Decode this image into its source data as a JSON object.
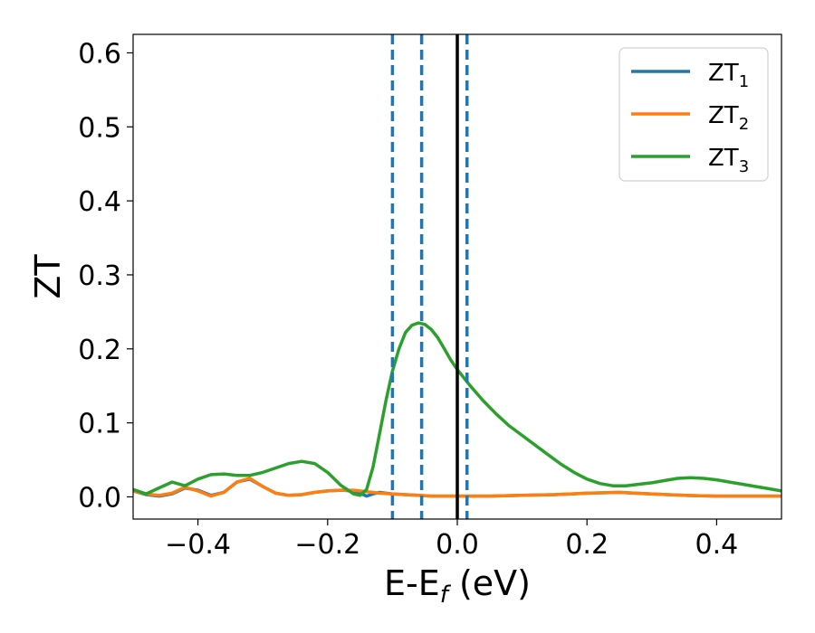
{
  "chart_data": {
    "type": "line",
    "xlabel_main": "E-E",
    "xlabel_sub": "f",
    "xlabel_unit": " (eV)",
    "ylabel": "ZT",
    "xlim": [
      -0.5,
      0.5
    ],
    "ylim": [
      -0.03,
      0.625
    ],
    "x_ticks": [
      -0.4,
      -0.2,
      0.0,
      0.2,
      0.4
    ],
    "x_tick_labels": [
      "−0.4",
      "−0.2",
      "0.0",
      "0.2",
      "0.4"
    ],
    "y_ticks": [
      0.0,
      0.1,
      0.2,
      0.3,
      0.4,
      0.5,
      0.6
    ],
    "y_tick_labels": [
      "0.0",
      "0.1",
      "0.2",
      "0.3",
      "0.4",
      "0.5",
      "0.6"
    ],
    "grid": false,
    "legend_position": "top-right",
    "vlines": [
      {
        "x": -0.1,
        "style": "dashed",
        "color": "#1f77b4"
      },
      {
        "x": -0.055,
        "style": "dashed",
        "color": "#1f77b4"
      },
      {
        "x": 0.015,
        "style": "dashed",
        "color": "#1f77b4"
      },
      {
        "x": 0.0,
        "style": "solid",
        "color": "#000000"
      }
    ],
    "series": [
      {
        "name": "ZT",
        "sub": "1",
        "color": "#1f77b4",
        "x": [
          -0.5,
          -0.48,
          -0.46,
          -0.44,
          -0.42,
          -0.4,
          -0.38,
          -0.36,
          -0.34,
          -0.32,
          -0.3,
          -0.28,
          -0.26,
          -0.24,
          -0.22,
          -0.2,
          -0.18,
          -0.16,
          -0.15,
          -0.14,
          -0.13,
          -0.12,
          -0.1,
          -0.08,
          -0.06,
          -0.04,
          -0.02,
          0.0,
          0.05,
          0.1,
          0.15,
          0.2,
          0.25,
          0.3,
          0.35,
          0.4,
          0.45,
          0.5
        ],
        "y": [
          0.008,
          0.003,
          0.001,
          0.004,
          0.012,
          0.009,
          0.002,
          0.006,
          0.02,
          0.024,
          0.014,
          0.005,
          0.002,
          0.003,
          0.006,
          0.008,
          0.009,
          0.008,
          0.005,
          0.001,
          0.004,
          0.006,
          0.004,
          0.003,
          0.002,
          0.001,
          0.001,
          0.001,
          0.001,
          0.002,
          0.003,
          0.005,
          0.006,
          0.004,
          0.002,
          0.001,
          0.001,
          0.001
        ]
      },
      {
        "name": "ZT",
        "sub": "2",
        "color": "#ff7f0e",
        "x": [
          -0.5,
          -0.48,
          -0.46,
          -0.44,
          -0.42,
          -0.4,
          -0.38,
          -0.36,
          -0.34,
          -0.32,
          -0.3,
          -0.28,
          -0.26,
          -0.24,
          -0.22,
          -0.2,
          -0.18,
          -0.16,
          -0.15,
          -0.14,
          -0.13,
          -0.12,
          -0.1,
          -0.08,
          -0.06,
          -0.04,
          -0.02,
          0.0,
          0.05,
          0.1,
          0.15,
          0.2,
          0.25,
          0.3,
          0.35,
          0.4,
          0.45,
          0.5
        ],
        "y": [
          0.008,
          0.004,
          0.002,
          0.005,
          0.013,
          0.008,
          0.001,
          0.006,
          0.02,
          0.025,
          0.014,
          0.005,
          0.002,
          0.003,
          0.006,
          0.008,
          0.009,
          0.009,
          0.008,
          0.007,
          0.006,
          0.005,
          0.004,
          0.003,
          0.002,
          0.001,
          0.001,
          0.001,
          0.001,
          0.002,
          0.003,
          0.005,
          0.006,
          0.004,
          0.002,
          0.001,
          0.001,
          0.001
        ]
      },
      {
        "name": "ZT",
        "sub": "3",
        "color": "#2ca02c",
        "x": [
          -0.5,
          -0.48,
          -0.46,
          -0.44,
          -0.42,
          -0.4,
          -0.38,
          -0.36,
          -0.34,
          -0.32,
          -0.3,
          -0.28,
          -0.26,
          -0.24,
          -0.22,
          -0.2,
          -0.18,
          -0.16,
          -0.15,
          -0.14,
          -0.13,
          -0.12,
          -0.11,
          -0.1,
          -0.09,
          -0.08,
          -0.07,
          -0.06,
          -0.05,
          -0.04,
          -0.03,
          -0.02,
          -0.01,
          0.0,
          0.02,
          0.04,
          0.06,
          0.08,
          0.1,
          0.12,
          0.14,
          0.16,
          0.18,
          0.2,
          0.22,
          0.24,
          0.26,
          0.28,
          0.3,
          0.32,
          0.34,
          0.36,
          0.38,
          0.4,
          0.42,
          0.44,
          0.46,
          0.48,
          0.5
        ],
        "y": [
          0.01,
          0.004,
          0.012,
          0.02,
          0.015,
          0.024,
          0.03,
          0.031,
          0.029,
          0.029,
          0.033,
          0.039,
          0.045,
          0.048,
          0.045,
          0.033,
          0.016,
          0.004,
          0.002,
          0.01,
          0.04,
          0.085,
          0.13,
          0.17,
          0.2,
          0.222,
          0.232,
          0.235,
          0.233,
          0.226,
          0.215,
          0.2,
          0.185,
          0.172,
          0.15,
          0.13,
          0.112,
          0.096,
          0.083,
          0.07,
          0.057,
          0.044,
          0.033,
          0.024,
          0.018,
          0.015,
          0.015,
          0.017,
          0.019,
          0.022,
          0.025,
          0.026,
          0.025,
          0.023,
          0.02,
          0.017,
          0.014,
          0.011,
          0.008
        ]
      }
    ]
  }
}
